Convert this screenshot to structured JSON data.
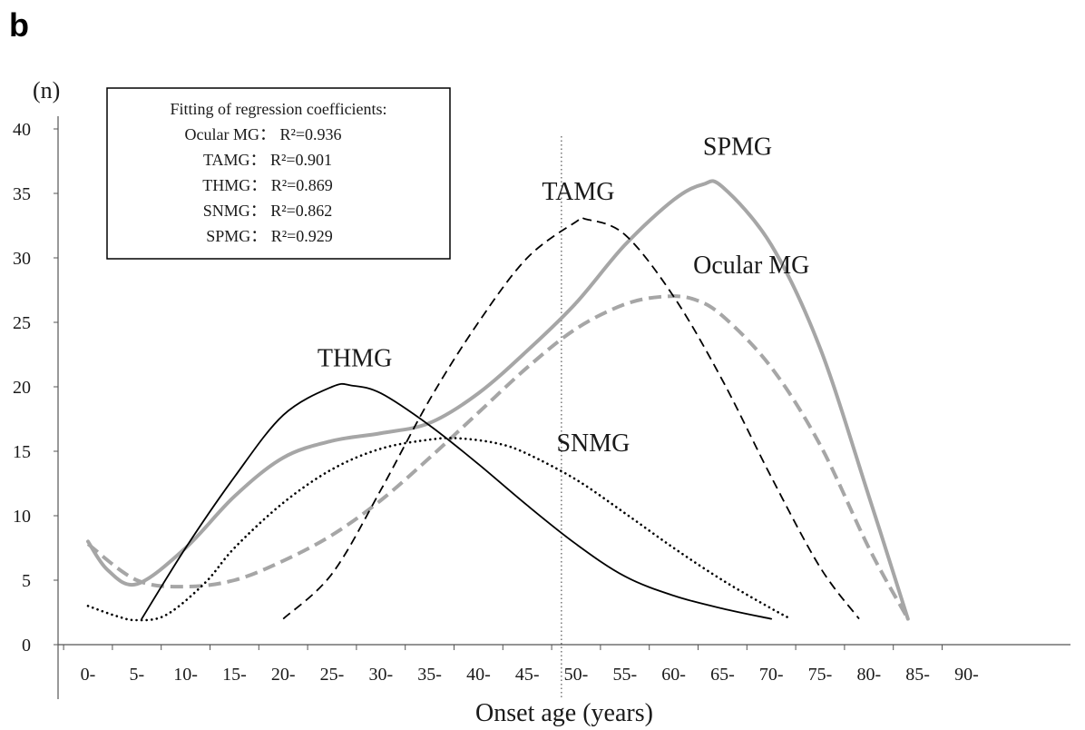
{
  "panel_label": "b",
  "chart_data": {
    "type": "line",
    "y_unit_label": "(n)",
    "xlabel": "Onset age (years)",
    "ylabel": "",
    "categories": [
      "0-",
      "5-",
      "10-",
      "15-",
      "20-",
      "25-",
      "30-",
      "35-",
      "40-",
      "45-",
      "50-",
      "55-",
      "60-",
      "65-",
      "70-",
      "75-",
      "80-",
      "85-",
      "90-"
    ],
    "y_ticks": [
      0,
      5,
      10,
      15,
      20,
      25,
      30,
      35,
      40
    ],
    "ylim": [
      0,
      40
    ],
    "xlim": [
      0,
      90
    ],
    "reference_line_x": 48.5,
    "fit_box": {
      "title": "Fitting of regression coefficients:",
      "lines": [
        {
          "name": "Ocular MG",
          "text": "Ocular MG： R²=0.936"
        },
        {
          "name": "TAMG",
          "text": "TAMG： R²=0.901"
        },
        {
          "name": "THMG",
          "text": "THMG： R²=0.869"
        },
        {
          "name": "SNMG",
          "text": "SNMG： R²=0.862"
        },
        {
          "name": "SPMG",
          "text": "SPMG： R²=0.929"
        }
      ]
    },
    "series": [
      {
        "name": "SPMG",
        "style": "solid-thick",
        "color": "#a6a6a6",
        "points": [
          [
            0,
            8
          ],
          [
            2,
            5.8
          ],
          [
            5,
            4.7
          ],
          [
            10,
            7.5
          ],
          [
            15,
            11.5
          ],
          [
            20,
            14.5
          ],
          [
            25,
            15.8
          ],
          [
            30,
            16.4
          ],
          [
            35,
            17.2
          ],
          [
            40,
            19.5
          ],
          [
            45,
            22.8
          ],
          [
            50,
            26.5
          ],
          [
            55,
            31
          ],
          [
            60,
            34.5
          ],
          [
            63,
            35.7
          ],
          [
            65,
            35.5
          ],
          [
            70,
            31
          ],
          [
            75,
            23
          ],
          [
            80,
            11.5
          ],
          [
            84,
            2
          ]
        ]
      },
      {
        "name": "Ocular MG",
        "style": "dashed-thick",
        "color": "#a6a6a6",
        "points": [
          [
            0,
            7.8
          ],
          [
            5,
            5
          ],
          [
            10,
            4.5
          ],
          [
            15,
            5
          ],
          [
            20,
            6.5
          ],
          [
            25,
            8.5
          ],
          [
            30,
            11.2
          ],
          [
            35,
            14.5
          ],
          [
            40,
            18
          ],
          [
            45,
            21.5
          ],
          [
            50,
            24.5
          ],
          [
            55,
            26.4
          ],
          [
            59,
            27
          ],
          [
            62,
            26.8
          ],
          [
            65,
            25.5
          ],
          [
            70,
            21.5
          ],
          [
            75,
            15.5
          ],
          [
            80,
            7.5
          ],
          [
            84,
            2
          ]
        ]
      },
      {
        "name": "TAMG",
        "style": "dashed",
        "color": "#000000",
        "points": [
          [
            20,
            2
          ],
          [
            25,
            5.5
          ],
          [
            30,
            12
          ],
          [
            35,
            19
          ],
          [
            40,
            25
          ],
          [
            45,
            30
          ],
          [
            50,
            32.8
          ],
          [
            51,
            33
          ],
          [
            55,
            31.8
          ],
          [
            60,
            27
          ],
          [
            65,
            20.5
          ],
          [
            70,
            13
          ],
          [
            75,
            6
          ],
          [
            79,
            2
          ]
        ]
      },
      {
        "name": "THMG",
        "style": "solid",
        "color": "#000000",
        "points": [
          [
            5.5,
            2
          ],
          [
            10,
            7.5
          ],
          [
            15,
            13
          ],
          [
            20,
            17.8
          ],
          [
            25,
            20
          ],
          [
            27,
            20.1
          ],
          [
            30,
            19.5
          ],
          [
            35,
            17
          ],
          [
            40,
            14
          ],
          [
            45,
            10.8
          ],
          [
            50,
            7.8
          ],
          [
            55,
            5.3
          ],
          [
            60,
            3.8
          ],
          [
            65,
            2.8
          ],
          [
            70,
            2
          ]
        ]
      },
      {
        "name": "SNMG",
        "style": "dotted",
        "color": "#000000",
        "points": [
          [
            0,
            3
          ],
          [
            3,
            2.2
          ],
          [
            5,
            1.9
          ],
          [
            8,
            2.3
          ],
          [
            12,
            4.8
          ],
          [
            15,
            7.5
          ],
          [
            20,
            11
          ],
          [
            25,
            13.6
          ],
          [
            30,
            15.2
          ],
          [
            35,
            15.9
          ],
          [
            38,
            16
          ],
          [
            42,
            15.6
          ],
          [
            45,
            14.8
          ],
          [
            50,
            12.8
          ],
          [
            55,
            10.2
          ],
          [
            60,
            7.5
          ],
          [
            65,
            5
          ],
          [
            70,
            2.8
          ],
          [
            72,
            2
          ]
        ]
      }
    ],
    "series_labels": [
      {
        "name": "SPMG",
        "text": "SPMG",
        "at": [
          63,
          38
        ]
      },
      {
        "name": "TAMG",
        "text": "TAMG",
        "at": [
          46.5,
          34.5
        ]
      },
      {
        "name": "Ocular MG",
        "text": "Ocular MG",
        "at": [
          62,
          28.8
        ]
      },
      {
        "name": "THMG",
        "text": "THMG",
        "at": [
          23.5,
          21.6
        ]
      },
      {
        "name": "SNMG",
        "text": "SNMG",
        "at": [
          48,
          15
        ]
      }
    ]
  }
}
